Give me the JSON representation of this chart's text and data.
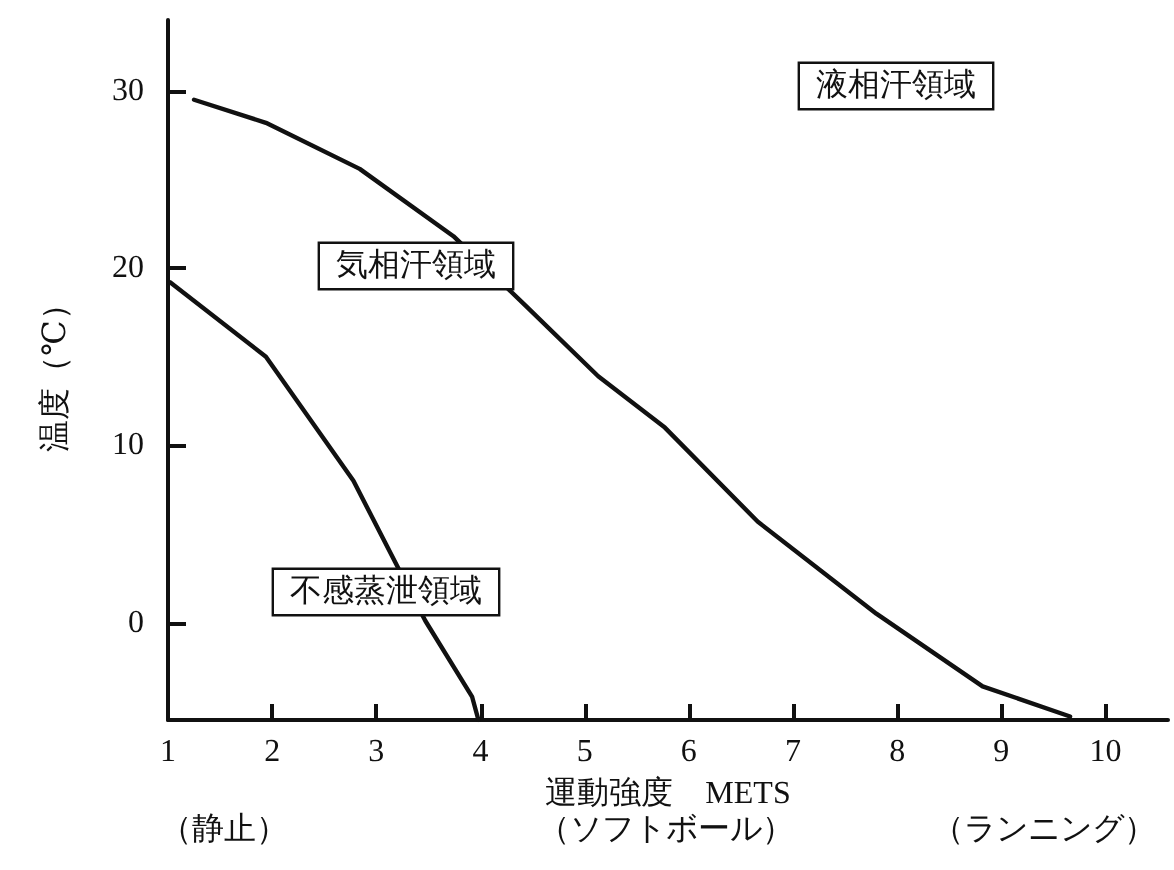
{
  "chart_data": {
    "type": "line",
    "xlabel": "運動強度　METS",
    "ylabel": "温度（℃）",
    "xlim": [
      1,
      10.6
    ],
    "xticks": [
      1,
      2,
      3,
      4,
      5,
      6,
      7,
      8,
      9,
      10
    ],
    "ylim": [
      -5.5,
      34
    ],
    "yticks": [
      0,
      10,
      20,
      30
    ],
    "grid": false,
    "marker": "none",
    "line_style": "solid",
    "series": [
      {
        "color": "#111111",
        "x": [
          1.25,
          1.94,
          2.84,
          3.74,
          4.43,
          5.13,
          5.77,
          6.66,
          7.8,
          8.82,
          9.66
        ],
        "values": [
          29.5,
          28.2,
          25.6,
          21.8,
          17.9,
          13.9,
          11,
          5.7,
          0.5,
          -3.6,
          -5.3
        ]
      },
      {
        "color": "#111111",
        "x": [
          1.02,
          1.94,
          2.78,
          3.47,
          3.92,
          3.98
        ],
        "values": [
          19.2,
          15,
          8,
          0.1,
          -4.2,
          -5.5
        ]
      }
    ],
    "annotations": [
      "液相汗領域",
      "気相汗領域",
      "不感蒸泄領域",
      "（静止）",
      "（ソフトボール）",
      "（ランニング）"
    ]
  }
}
